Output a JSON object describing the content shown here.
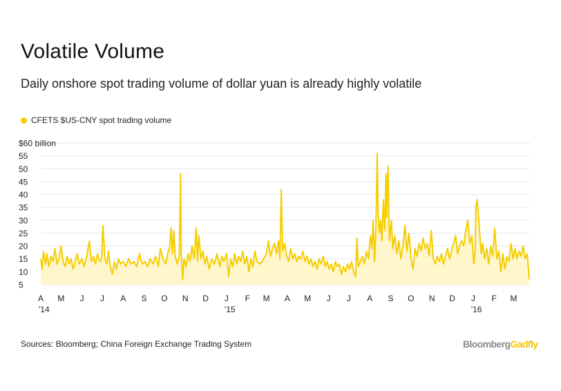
{
  "header": {
    "title": "Volatile Volume",
    "subtitle": "Daily onshore spot trading volume of dollar yuan is already highly volatile"
  },
  "footer": {
    "source": "Sources: Bloomberg; China Foreign Exchange Trading System",
    "brand_part1": "Bloomberg",
    "brand_part2": "Gadfly"
  },
  "colors": {
    "line": "#f5cd00",
    "fill": "#fff6cc",
    "grid": "#e6e6e6",
    "brand_grey": "#8a8a8a"
  },
  "chart_data": {
    "type": "area",
    "title": "Volatile Volume",
    "subtitle": "Daily onshore spot trading volume of dollar yuan is already highly volatile",
    "legend": [
      "CFETS $US-CNY spot trading volume"
    ],
    "legend_position": "top-left",
    "ylabel": "",
    "ylim": [
      5,
      60
    ],
    "y_ticks": [
      5,
      10,
      15,
      20,
      25,
      30,
      35,
      40,
      45,
      50,
      55,
      60
    ],
    "y_tick_labels": [
      "5",
      "10",
      "15",
      "20",
      "25",
      "30",
      "35",
      "40",
      "45",
      "50",
      "55",
      "$60 billion"
    ],
    "x_range": [
      "2014-04-01",
      "2016-03-25"
    ],
    "x_ticks": [
      {
        "date": "2014-04-01",
        "label": "A",
        "year": "'14"
      },
      {
        "date": "2014-05-01",
        "label": "M"
      },
      {
        "date": "2014-06-01",
        "label": "J"
      },
      {
        "date": "2014-07-01",
        "label": "J"
      },
      {
        "date": "2014-08-01",
        "label": "A"
      },
      {
        "date": "2014-09-01",
        "label": "S"
      },
      {
        "date": "2014-10-01",
        "label": "O"
      },
      {
        "date": "2014-11-01",
        "label": "N"
      },
      {
        "date": "2014-12-01",
        "label": "D"
      },
      {
        "date": "2015-01-01",
        "label": "J",
        "year": "'15"
      },
      {
        "date": "2015-02-01",
        "label": "F"
      },
      {
        "date": "2015-03-01",
        "label": "M"
      },
      {
        "date": "2015-04-01",
        "label": "A"
      },
      {
        "date": "2015-05-01",
        "label": "M"
      },
      {
        "date": "2015-06-01",
        "label": "J"
      },
      {
        "date": "2015-07-01",
        "label": "J"
      },
      {
        "date": "2015-08-01",
        "label": "A"
      },
      {
        "date": "2015-09-01",
        "label": "S"
      },
      {
        "date": "2015-10-01",
        "label": "O"
      },
      {
        "date": "2015-11-01",
        "label": "N"
      },
      {
        "date": "2015-12-01",
        "label": "D"
      },
      {
        "date": "2016-01-01",
        "label": "J",
        "year": "'16"
      },
      {
        "date": "2016-02-01",
        "label": "F"
      },
      {
        "date": "2016-03-01",
        "label": "M"
      }
    ],
    "grid": true,
    "series": [
      {
        "name": "CFETS $US-CNY spot trading volume",
        "points": [
          [
            "2014-04-01",
            15
          ],
          [
            "2014-04-03",
            11
          ],
          [
            "2014-04-05",
            18
          ],
          [
            "2014-04-08",
            13
          ],
          [
            "2014-04-10",
            17
          ],
          [
            "2014-04-13",
            12
          ],
          [
            "2014-04-16",
            16
          ],
          [
            "2014-04-19",
            14
          ],
          [
            "2014-04-22",
            19
          ],
          [
            "2014-04-25",
            13
          ],
          [
            "2014-04-28",
            15
          ],
          [
            "2014-05-01",
            20
          ],
          [
            "2014-05-04",
            14
          ],
          [
            "2014-05-07",
            12
          ],
          [
            "2014-05-10",
            16
          ],
          [
            "2014-05-13",
            13
          ],
          [
            "2014-05-16",
            15
          ],
          [
            "2014-05-19",
            11
          ],
          [
            "2014-05-22",
            14
          ],
          [
            "2014-05-25",
            17
          ],
          [
            "2014-05-28",
            13
          ],
          [
            "2014-06-01",
            15
          ],
          [
            "2014-06-04",
            12
          ],
          [
            "2014-06-08",
            16
          ],
          [
            "2014-06-12",
            22
          ],
          [
            "2014-06-15",
            14
          ],
          [
            "2014-06-18",
            16
          ],
          [
            "2014-06-21",
            13
          ],
          [
            "2014-06-24",
            17
          ],
          [
            "2014-06-27",
            14
          ],
          [
            "2014-06-30",
            15
          ],
          [
            "2014-07-02",
            28
          ],
          [
            "2014-07-05",
            15
          ],
          [
            "2014-07-08",
            13
          ],
          [
            "2014-07-10",
            18
          ],
          [
            "2014-07-13",
            12
          ],
          [
            "2014-07-16",
            9
          ],
          [
            "2014-07-19",
            14
          ],
          [
            "2014-07-22",
            11
          ],
          [
            "2014-07-25",
            15
          ],
          [
            "2014-07-28",
            13
          ],
          [
            "2014-08-01",
            14
          ],
          [
            "2014-08-05",
            12
          ],
          [
            "2014-08-09",
            15
          ],
          [
            "2014-08-13",
            13
          ],
          [
            "2014-08-17",
            14
          ],
          [
            "2014-08-21",
            12
          ],
          [
            "2014-08-25",
            17
          ],
          [
            "2014-08-29",
            13
          ],
          [
            "2014-09-02",
            14
          ],
          [
            "2014-09-06",
            12
          ],
          [
            "2014-09-10",
            15
          ],
          [
            "2014-09-14",
            13
          ],
          [
            "2014-09-18",
            16
          ],
          [
            "2014-09-22",
            12
          ],
          [
            "2014-09-25",
            19
          ],
          [
            "2014-09-29",
            15
          ],
          [
            "2014-10-03",
            13
          ],
          [
            "2014-10-06",
            17
          ],
          [
            "2014-10-09",
            20
          ],
          [
            "2014-10-11",
            27
          ],
          [
            "2014-10-13",
            17
          ],
          [
            "2014-10-15",
            26
          ],
          [
            "2014-10-17",
            16
          ],
          [
            "2014-10-20",
            13
          ],
          [
            "2014-10-23",
            16
          ],
          [
            "2014-10-25",
            48
          ],
          [
            "2014-10-26",
            17
          ],
          [
            "2014-10-28",
            7
          ],
          [
            "2014-10-30",
            15
          ],
          [
            "2014-11-02",
            12
          ],
          [
            "2014-11-05",
            17
          ],
          [
            "2014-11-08",
            14
          ],
          [
            "2014-11-11",
            20
          ],
          [
            "2014-11-14",
            15
          ],
          [
            "2014-11-17",
            27
          ],
          [
            "2014-11-19",
            14
          ],
          [
            "2014-11-21",
            24
          ],
          [
            "2014-11-24",
            15
          ],
          [
            "2014-11-27",
            18
          ],
          [
            "2014-11-30",
            13
          ],
          [
            "2014-12-03",
            16
          ],
          [
            "2014-12-06",
            11
          ],
          [
            "2014-12-10",
            15
          ],
          [
            "2014-12-14",
            13
          ],
          [
            "2014-12-18",
            17
          ],
          [
            "2014-12-22",
            12
          ],
          [
            "2014-12-25",
            16
          ],
          [
            "2014-12-28",
            14
          ],
          [
            "2015-01-01",
            17
          ],
          [
            "2015-01-04",
            8
          ],
          [
            "2015-01-07",
            15
          ],
          [
            "2015-01-10",
            12
          ],
          [
            "2015-01-13",
            17
          ],
          [
            "2015-01-16",
            13
          ],
          [
            "2015-01-19",
            16
          ],
          [
            "2015-01-22",
            14
          ],
          [
            "2015-01-25",
            18
          ],
          [
            "2015-01-28",
            13
          ],
          [
            "2015-01-31",
            16
          ],
          [
            "2015-02-03",
            10
          ],
          [
            "2015-02-06",
            15
          ],
          [
            "2015-02-09",
            12
          ],
          [
            "2015-02-12",
            18
          ],
          [
            "2015-02-15",
            14
          ],
          [
            "2015-02-20",
            13
          ],
          [
            "2015-02-25",
            15
          ],
          [
            "2015-03-01",
            17
          ],
          [
            "2015-03-04",
            22
          ],
          [
            "2015-03-07",
            16
          ],
          [
            "2015-03-10",
            19
          ],
          [
            "2015-03-13",
            21
          ],
          [
            "2015-03-16",
            17
          ],
          [
            "2015-03-19",
            22
          ],
          [
            "2015-03-21",
            15
          ],
          [
            "2015-03-23",
            42
          ],
          [
            "2015-03-25",
            18
          ],
          [
            "2015-03-28",
            21
          ],
          [
            "2015-03-31",
            16
          ],
          [
            "2015-04-03",
            14
          ],
          [
            "2015-04-06",
            19
          ],
          [
            "2015-04-09",
            15
          ],
          [
            "2015-04-12",
            17
          ],
          [
            "2015-04-15",
            14
          ],
          [
            "2015-04-18",
            16
          ],
          [
            "2015-04-21",
            15
          ],
          [
            "2015-04-24",
            18
          ],
          [
            "2015-04-27",
            14
          ],
          [
            "2015-04-30",
            16
          ],
          [
            "2015-05-03",
            13
          ],
          [
            "2015-05-06",
            15
          ],
          [
            "2015-05-09",
            12
          ],
          [
            "2015-05-12",
            14
          ],
          [
            "2015-05-15",
            11
          ],
          [
            "2015-05-18",
            15
          ],
          [
            "2015-05-21",
            13
          ],
          [
            "2015-05-24",
            16
          ],
          [
            "2015-05-27",
            12
          ],
          [
            "2015-05-30",
            14
          ],
          [
            "2015-06-02",
            11
          ],
          [
            "2015-06-05",
            13
          ],
          [
            "2015-06-08",
            10
          ],
          [
            "2015-06-11",
            14
          ],
          [
            "2015-06-14",
            12
          ],
          [
            "2015-06-17",
            13
          ],
          [
            "2015-06-20",
            9
          ],
          [
            "2015-06-23",
            12
          ],
          [
            "2015-06-26",
            10
          ],
          [
            "2015-06-29",
            13
          ],
          [
            "2015-07-02",
            11
          ],
          [
            "2015-07-05",
            14
          ],
          [
            "2015-07-08",
            10
          ],
          [
            "2015-07-11",
            8
          ],
          [
            "2015-07-13",
            23
          ],
          [
            "2015-07-15",
            12
          ],
          [
            "2015-07-18",
            14
          ],
          [
            "2015-07-21",
            16
          ],
          [
            "2015-07-24",
            13
          ],
          [
            "2015-07-27",
            18
          ],
          [
            "2015-07-30",
            15
          ],
          [
            "2015-08-02",
            24
          ],
          [
            "2015-08-04",
            19
          ],
          [
            "2015-08-06",
            30
          ],
          [
            "2015-08-08",
            14
          ],
          [
            "2015-08-10",
            26
          ],
          [
            "2015-08-12",
            56
          ],
          [
            "2015-08-13",
            35
          ],
          [
            "2015-08-15",
            25
          ],
          [
            "2015-08-17",
            30
          ],
          [
            "2015-08-19",
            22
          ],
          [
            "2015-08-21",
            38
          ],
          [
            "2015-08-23",
            26
          ],
          [
            "2015-08-25",
            48
          ],
          [
            "2015-08-26",
            31
          ],
          [
            "2015-08-28",
            51
          ],
          [
            "2015-08-30",
            22
          ],
          [
            "2015-09-02",
            30
          ],
          [
            "2015-09-04",
            19
          ],
          [
            "2015-09-07",
            24
          ],
          [
            "2015-09-10",
            17
          ],
          [
            "2015-09-13",
            22
          ],
          [
            "2015-09-16",
            15
          ],
          [
            "2015-09-19",
            20
          ],
          [
            "2015-09-22",
            28
          ],
          [
            "2015-09-25",
            18
          ],
          [
            "2015-09-28",
            25
          ],
          [
            "2015-10-01",
            15
          ],
          [
            "2015-10-04",
            11
          ],
          [
            "2015-10-07",
            19
          ],
          [
            "2015-10-10",
            16
          ],
          [
            "2015-10-13",
            21
          ],
          [
            "2015-10-16",
            18
          ],
          [
            "2015-10-19",
            23
          ],
          [
            "2015-10-22",
            19
          ],
          [
            "2015-10-25",
            21
          ],
          [
            "2015-10-28",
            16
          ],
          [
            "2015-10-31",
            26
          ],
          [
            "2015-11-03",
            15
          ],
          [
            "2015-11-06",
            13
          ],
          [
            "2015-11-09",
            16
          ],
          [
            "2015-11-12",
            14
          ],
          [
            "2015-11-15",
            17
          ],
          [
            "2015-11-18",
            13
          ],
          [
            "2015-11-21",
            16
          ],
          [
            "2015-11-24",
            19
          ],
          [
            "2015-11-27",
            15
          ],
          [
            "2015-11-30",
            18
          ],
          [
            "2015-12-03",
            21
          ],
          [
            "2015-12-06",
            24
          ],
          [
            "2015-12-09",
            17
          ],
          [
            "2015-12-12",
            20
          ],
          [
            "2015-12-15",
            22
          ],
          [
            "2015-12-18",
            20
          ],
          [
            "2015-12-21",
            26
          ],
          [
            "2015-12-24",
            30
          ],
          [
            "2015-12-27",
            21
          ],
          [
            "2015-12-30",
            24
          ],
          [
            "2016-01-02",
            13
          ],
          [
            "2016-01-04",
            18
          ],
          [
            "2016-01-05",
            35
          ],
          [
            "2016-01-07",
            38
          ],
          [
            "2016-01-09",
            31
          ],
          [
            "2016-01-11",
            24
          ],
          [
            "2016-01-13",
            17
          ],
          [
            "2016-01-15",
            21
          ],
          [
            "2016-01-18",
            15
          ],
          [
            "2016-01-21",
            19
          ],
          [
            "2016-01-24",
            13
          ],
          [
            "2016-01-27",
            20
          ],
          [
            "2016-01-30",
            16
          ],
          [
            "2016-02-02",
            27
          ],
          [
            "2016-02-05",
            15
          ],
          [
            "2016-02-08",
            18
          ],
          [
            "2016-02-11",
            10
          ],
          [
            "2016-02-14",
            17
          ],
          [
            "2016-02-17",
            11
          ],
          [
            "2016-02-20",
            16
          ],
          [
            "2016-02-23",
            14
          ],
          [
            "2016-02-26",
            21
          ],
          [
            "2016-02-29",
            15
          ],
          [
            "2016-03-03",
            19
          ],
          [
            "2016-03-06",
            15
          ],
          [
            "2016-03-09",
            18
          ],
          [
            "2016-03-12",
            16
          ],
          [
            "2016-03-15",
            20
          ],
          [
            "2016-03-18",
            15
          ],
          [
            "2016-03-21",
            17
          ],
          [
            "2016-03-24",
            7
          ]
        ]
      }
    ]
  }
}
